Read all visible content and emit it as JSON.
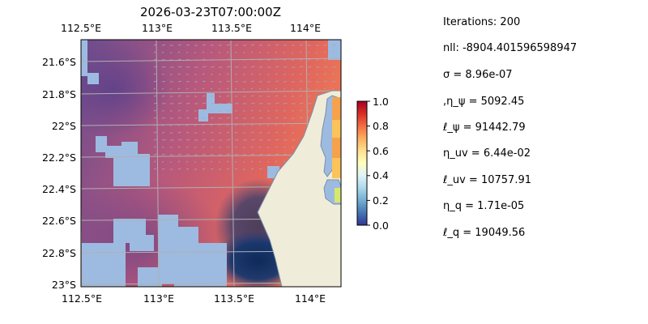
{
  "map": {
    "title": "2026-03-23T07:00:00Z",
    "lon_labels": [
      "112.5°E",
      "113°E",
      "113.5°E",
      "114°E"
    ],
    "lon_values": [
      112.5,
      113.0,
      113.5,
      114.0
    ],
    "lat_labels": [
      "21.6°S",
      "21.8°S",
      "22°S",
      "22.2°S",
      "22.4°S",
      "22.6°S",
      "22.8°S",
      "23°S"
    ],
    "lat_values": [
      -21.6,
      -21.8,
      -22.0,
      -22.2,
      -22.4,
      -22.6,
      -22.8,
      -23.0
    ],
    "extent": {
      "lon_min": 112.5,
      "lon_max": 114.2,
      "lat_min": -23.02,
      "lat_max": -21.47
    },
    "colors": {
      "land": "#efedda",
      "masked": "#9dbbe1",
      "grid": "#b0b0b0",
      "vectors": "#a6a6c6"
    },
    "colormap": "RdYlBu_r"
  },
  "colorbar": {
    "ticks": [
      "0.0",
      "0.2",
      "0.4",
      "0.6",
      "0.8",
      "1.0"
    ],
    "tick_values": [
      0.0,
      0.2,
      0.4,
      0.6,
      0.8,
      1.0
    ]
  },
  "stats": [
    "Iterations: 200",
    "nll: -8904.401596598947",
    "σ = 8.96e-07",
    ",η_ψ = 5092.45",
    "ℓ_ψ = 91442.79",
    "η_uv = 6.44e-02",
    "ℓ_uv = 10757.91",
    "η_q = 1.71e-05",
    "ℓ_q = 19049.56"
  ]
}
